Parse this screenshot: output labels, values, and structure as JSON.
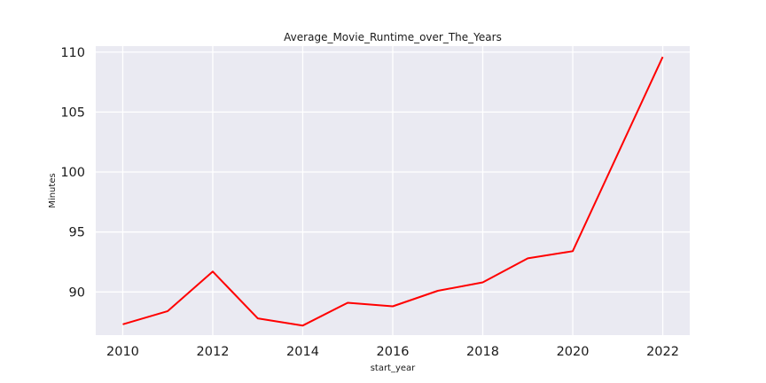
{
  "chart_data": {
    "type": "line",
    "title": "Average_Movie_Runtime_over_The_Years",
    "xlabel": "start_year",
    "ylabel": "Minutes",
    "x": [
      2010,
      2011,
      2012,
      2013,
      2014,
      2015,
      2016,
      2017,
      2018,
      2019,
      2020,
      2022
    ],
    "series": [
      {
        "values": [
          87.3,
          88.4,
          91.7,
          87.8,
          87.2,
          89.1,
          88.8,
          90.1,
          90.8,
          92.8,
          93.4,
          109.6
        ]
      }
    ],
    "xticks": [
      "2010",
      "2012",
      "2014",
      "2016",
      "2018",
      "2020",
      "2022"
    ],
    "yticks": [
      "90",
      "95",
      "100",
      "105",
      "110"
    ],
    "xlim": [
      2009.4,
      2022.6
    ],
    "ylim": [
      86.4,
      110.5
    ],
    "grid": true,
    "style": {
      "background": "#eaeaf2",
      "line_color": "#ff0000",
      "grid_color": "#ffffff"
    }
  }
}
